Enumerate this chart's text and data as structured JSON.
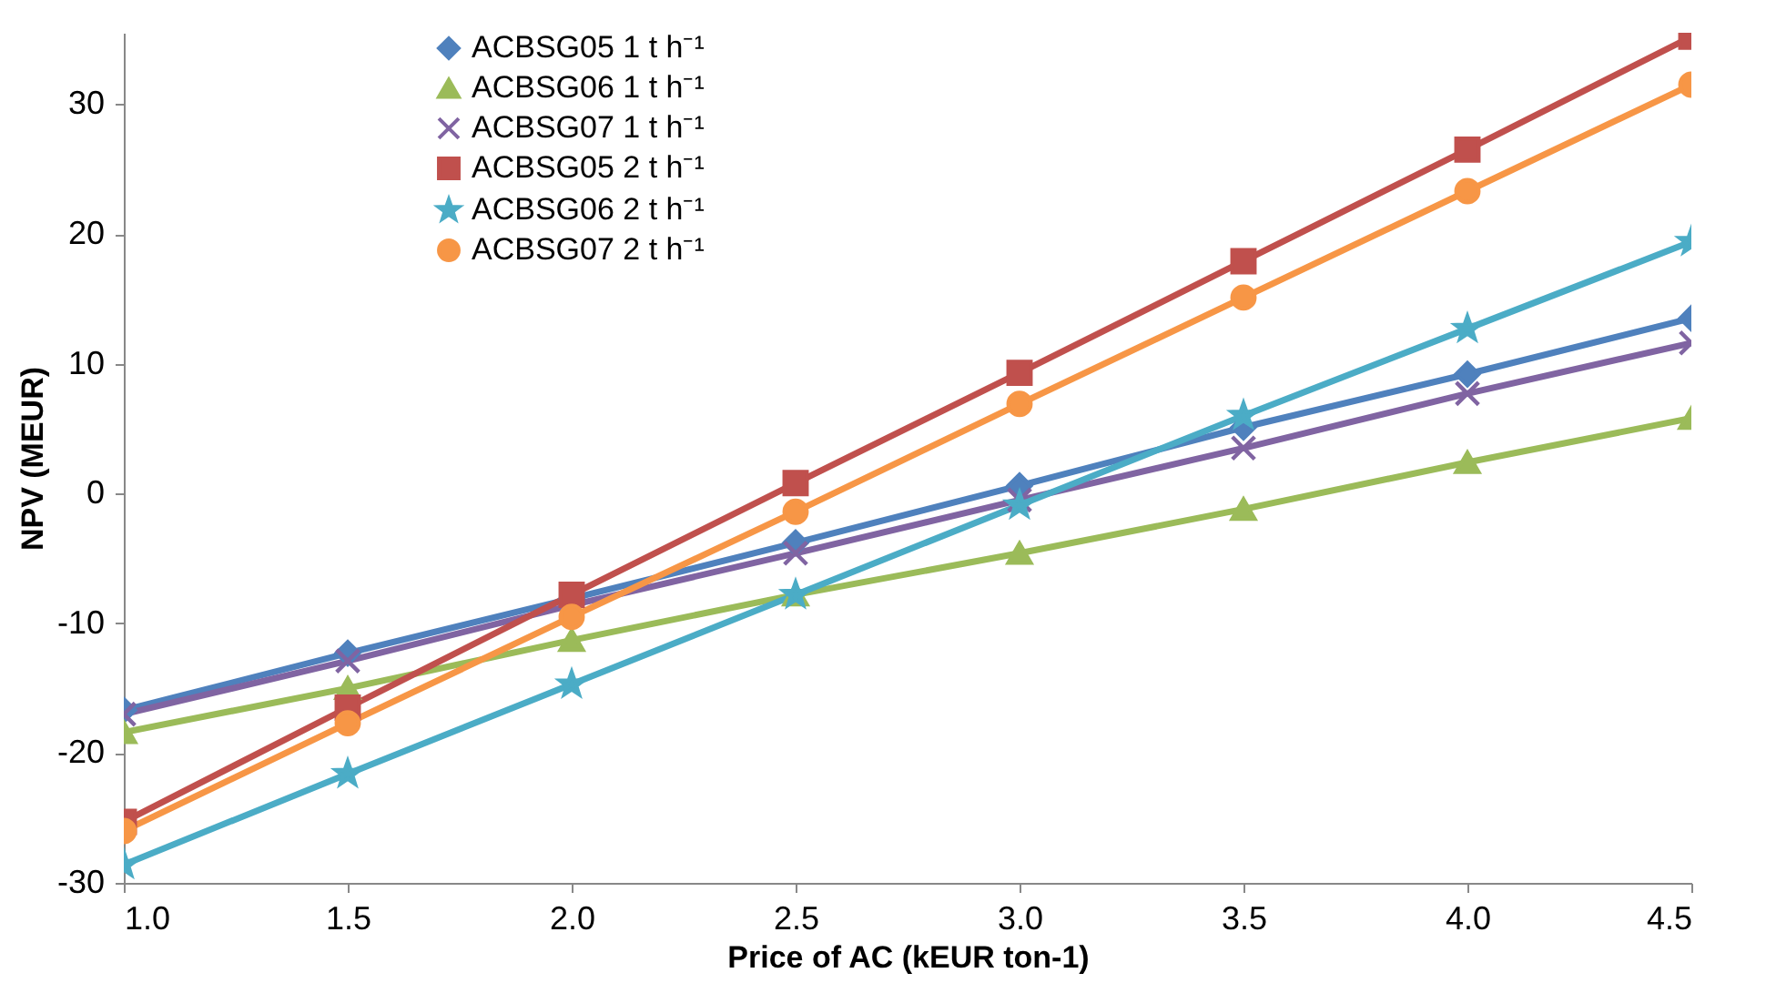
{
  "chart_data": {
    "type": "line",
    "xlabel": "Price of AC (kEUR ton-1)",
    "ylabel": "NPV (MEUR)",
    "x": [
      1.0,
      1.5,
      2.0,
      2.5,
      3.0,
      3.5,
      4.0,
      4.5
    ],
    "xlim": [
      1.0,
      4.5
    ],
    "xticks": [
      {
        "value": 1,
        "label": "1.0"
      },
      {
        "value": 1.5,
        "label": "1.5"
      },
      {
        "value": 2,
        "label": "2.0"
      },
      {
        "value": 2.5,
        "label": "2.5"
      },
      {
        "value": 3,
        "label": "3.0"
      },
      {
        "value": 3.5,
        "label": "3.5"
      },
      {
        "value": 4,
        "label": "4.0"
      },
      {
        "value": 4.5,
        "label": "4.5"
      }
    ],
    "ylim": [
      -30,
      35.5
    ],
    "yticks": [
      -30,
      -20,
      -10,
      0,
      10,
      20,
      30
    ],
    "legend": "top left",
    "line_style": "solid",
    "series": [
      {
        "name": "ACBSG05 1 t h⁻¹",
        "color": "#4f81bd",
        "marker": "diamond",
        "values": [
          -16.7,
          -12.3,
          -8.1,
          -3.8,
          0.6,
          5.1,
          9.2,
          13.5
        ]
      },
      {
        "name": "ACBSG06  1 t h⁻¹",
        "color": "#9bbb59",
        "marker": "triangle",
        "values": [
          -18.4,
          -15.0,
          -11.3,
          -7.8,
          -4.6,
          -1.2,
          2.4,
          5.8
        ]
      },
      {
        "name": "ACBSG07  1 t h⁻¹",
        "color": "#8064a2",
        "marker": "cross",
        "values": [
          -17.0,
          -12.9,
          -8.6,
          -4.6,
          -0.5,
          3.5,
          7.7,
          11.6
        ]
      },
      {
        "name": "ACBSG05  2 t h⁻¹",
        "color": "#c0504d",
        "marker": "square",
        "values": [
          -25.3,
          -16.5,
          -7.8,
          0.8,
          9.3,
          17.9,
          26.5,
          35.2
        ]
      },
      {
        "name": "ACBSG06  2 t h⁻¹",
        "color": "#4bacc6",
        "marker": "star",
        "values": [
          -28.6,
          -21.6,
          -14.7,
          -7.8,
          -0.9,
          6.0,
          12.7,
          19.4
        ]
      },
      {
        "name": "ACBSG07  2 t h⁻¹",
        "color": "#f79646",
        "marker": "circle",
        "values": [
          -26.0,
          -17.7,
          -9.5,
          -1.4,
          6.9,
          15.1,
          23.3,
          31.5
        ]
      }
    ]
  }
}
